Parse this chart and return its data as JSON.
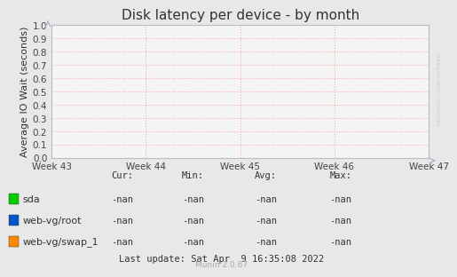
{
  "title": "Disk latency per device - by month",
  "ylabel": "Average IO Wait (seconds)",
  "ylim": [
    0.0,
    1.0
  ],
  "yticks": [
    0.0,
    0.1,
    0.2,
    0.3,
    0.4,
    0.5,
    0.6,
    0.7,
    0.8,
    0.9,
    1.0
  ],
  "xtick_labels": [
    "Week 43",
    "Week 44",
    "Week 45",
    "Week 46",
    "Week 47"
  ],
  "bg_color": "#e8e8e8",
  "plot_bg_color": "#f5f5f5",
  "grid_color": "#ffaaaa",
  "legend_items": [
    {
      "label": "sda",
      "color": "#00cc00"
    },
    {
      "label": "web-vg/root",
      "color": "#0055cc"
    },
    {
      "label": "web-vg/swap_1",
      "color": "#ff8800"
    }
  ],
  "legend_stats": {
    "headers": [
      "Cur:",
      "Min:",
      "Avg:",
      "Max:"
    ],
    "rows": [
      [
        "-nan",
        "-nan",
        "-nan",
        "-nan"
      ],
      [
        "-nan",
        "-nan",
        "-nan",
        "-nan"
      ],
      [
        "-nan",
        "-nan",
        "-nan",
        "-nan"
      ]
    ]
  },
  "last_update": "Last update: Sat Apr  9 16:35:08 2022",
  "munin_version": "Munin 2.0.67",
  "watermark": "RRDTOOL / TOBI OETIKER",
  "title_fontsize": 11,
  "label_fontsize": 8,
  "tick_fontsize": 7.5,
  "legend_fontsize": 8,
  "stat_fontsize": 7.5
}
